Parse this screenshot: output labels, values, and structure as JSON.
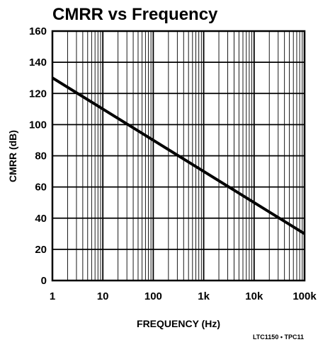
{
  "chart_data": {
    "type": "line",
    "title": "CMRR vs Frequency",
    "xlabel": "FREQUENCY (Hz)",
    "ylabel": "CMRR (dB)",
    "x_scale": "log",
    "xlim": [
      1,
      100000
    ],
    "ylim": [
      0,
      160
    ],
    "x_ticks": [
      1,
      10,
      100,
      1000,
      10000,
      100000
    ],
    "x_tick_labels": [
      "1",
      "10",
      "100",
      "1k",
      "10k",
      "100k"
    ],
    "y_ticks": [
      0,
      20,
      40,
      60,
      80,
      100,
      120,
      140,
      160
    ],
    "y_tick_labels": [
      "0",
      "20",
      "40",
      "60",
      "80",
      "100",
      "120",
      "140",
      "160"
    ],
    "grid": true,
    "series": [
      {
        "x": [
          1,
          10,
          100,
          1000,
          10000,
          100000
        ],
        "y": [
          130,
          110,
          90,
          70,
          50,
          30
        ]
      }
    ],
    "colors": {
      "line": "#000000",
      "grid": "#000000",
      "background": "#ffffff"
    },
    "annotation": "LTC1150 • TPC11"
  }
}
